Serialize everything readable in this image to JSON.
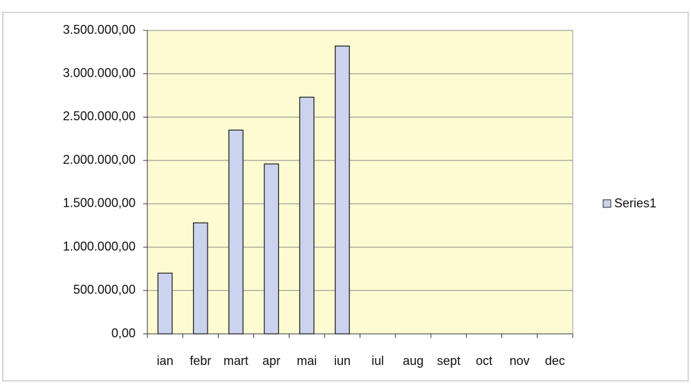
{
  "chart_data": {
    "type": "bar",
    "categories": [
      "ian",
      "febr",
      "mart",
      "apr",
      "mai",
      "iun",
      "iul",
      "aug",
      "sept",
      "oct",
      "nov",
      "dec"
    ],
    "series": [
      {
        "name": "Series1",
        "color": "#ccd3ee",
        "values": [
          700000,
          1280000,
          2350000,
          1960000,
          2730000,
          3320000,
          null,
          null,
          null,
          null,
          null,
          null
        ]
      }
    ],
    "ylim": [
      0,
      3500000
    ],
    "yticks": [
      {
        "value": 0,
        "label": "0,00"
      },
      {
        "value": 500000,
        "label": "500.000,00"
      },
      {
        "value": 1000000,
        "label": "1.000.000,00"
      },
      {
        "value": 1500000,
        "label": "1.500.000,00"
      },
      {
        "value": 2000000,
        "label": "2.000.000,00"
      },
      {
        "value": 2500000,
        "label": "2.500.000,00"
      },
      {
        "value": 3000000,
        "label": "3.000.000,00"
      },
      {
        "value": 3500000,
        "label": "3.500.000,00"
      }
    ],
    "grid": true,
    "legend": "right"
  }
}
